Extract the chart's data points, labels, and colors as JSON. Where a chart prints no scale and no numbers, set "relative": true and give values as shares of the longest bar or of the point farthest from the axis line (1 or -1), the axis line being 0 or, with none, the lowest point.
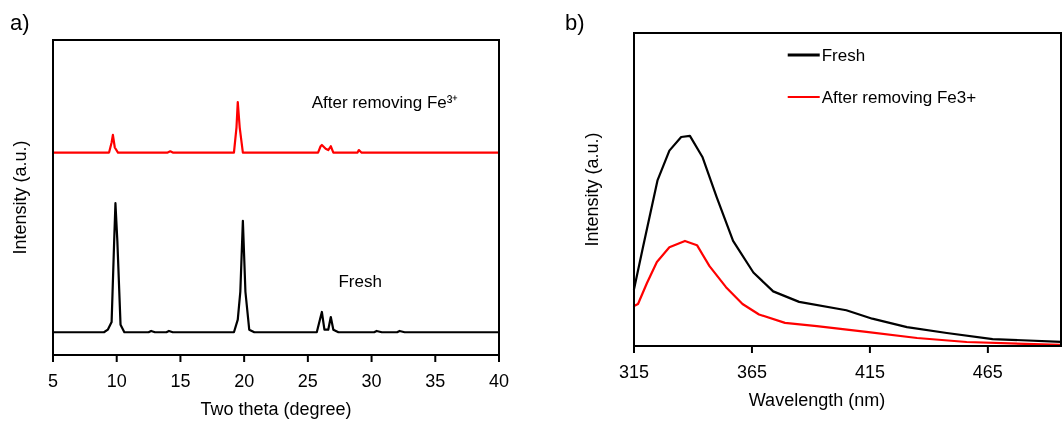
{
  "chart_data": [
    {
      "type": "line",
      "title": "a)",
      "xlabel": "Two theta (degree)",
      "ylabel": "Intensity (a.u.)",
      "relative": true,
      "xlim": [
        5,
        40
      ],
      "xticks": [
        5,
        10,
        15,
        20,
        25,
        30,
        35,
        40
      ],
      "legend": false,
      "series": [
        {
          "name": "After removing Fe³⁺",
          "color": "#ff0000",
          "x": [
            5,
            9.4,
            9.6,
            9.7,
            9.85,
            10.1,
            14.0,
            14.2,
            14.4,
            19.2,
            19.4,
            19.5,
            19.65,
            19.9,
            25.8,
            26.0,
            26.1,
            26.3,
            26.4,
            26.6,
            26.8,
            27.0,
            28.9,
            29.0,
            29.2,
            40
          ],
          "values": [
            0.8,
            0.8,
            0.84,
            0.87,
            0.82,
            0.8,
            0.8,
            0.805,
            0.8,
            0.8,
            0.9,
            1.0,
            0.9,
            0.8,
            0.8,
            0.825,
            0.83,
            0.82,
            0.815,
            0.81,
            0.825,
            0.8,
            0.8,
            0.81,
            0.8,
            0.8
          ]
        },
        {
          "name": "Fresh",
          "color": "#000000",
          "x": [
            5,
            9.0,
            9.3,
            9.6,
            9.8,
            9.9,
            10.05,
            10.3,
            10.6,
            12.5,
            12.7,
            13.0,
            13.9,
            14.1,
            14.4,
            19.2,
            19.5,
            19.7,
            19.9,
            20.1,
            20.4,
            20.8,
            25.7,
            26.0,
            26.1,
            26.3,
            26.6,
            26.8,
            27.0,
            27.4,
            30.2,
            30.4,
            30.8,
            32.0,
            32.2,
            32.6,
            40
          ],
          "values": [
            0.09,
            0.09,
            0.1,
            0.13,
            0.45,
            0.6,
            0.45,
            0.12,
            0.09,
            0.09,
            0.095,
            0.09,
            0.09,
            0.095,
            0.09,
            0.09,
            0.14,
            0.25,
            0.53,
            0.25,
            0.1,
            0.09,
            0.09,
            0.15,
            0.17,
            0.1,
            0.1,
            0.15,
            0.1,
            0.09,
            0.09,
            0.095,
            0.09,
            0.09,
            0.095,
            0.09,
            0.09
          ]
        }
      ]
    },
    {
      "type": "line",
      "title": "b)",
      "xlabel": "Wavelength (nm)",
      "ylabel": "Intensity (a.u.)",
      "relative": true,
      "xlim": [
        315,
        496
      ],
      "xticks": [
        315,
        365,
        415,
        465
      ],
      "legend": "top right",
      "series": [
        {
          "name": "Fresh",
          "color": "#000000",
          "x": [
            315,
            318.8,
            325,
            330,
            335,
            338.7,
            344,
            350,
            357,
            365.6,
            374,
            385,
            405,
            416,
            430.7,
            447.6,
            467,
            496
          ],
          "values": [
            0.27,
            0.47,
            0.79,
            0.93,
            0.995,
            1.0,
            0.9,
            0.71,
            0.5,
            0.35,
            0.26,
            0.21,
            0.17,
            0.13,
            0.09,
            0.062,
            0.033,
            0.02
          ]
        },
        {
          "name": "After removing Fe3+",
          "color": "#ff0000",
          "x": [
            315,
            316.7,
            320.5,
            324.7,
            330,
            336.6,
            341.7,
            347,
            354,
            361,
            368,
            379,
            392.5,
            413.5,
            435,
            456,
            496
          ],
          "values": [
            0.19,
            0.2,
            0.3,
            0.4,
            0.47,
            0.5,
            0.48,
            0.38,
            0.28,
            0.2,
            0.15,
            0.11,
            0.095,
            0.067,
            0.038,
            0.019,
            0.005
          ]
        }
      ]
    }
  ]
}
